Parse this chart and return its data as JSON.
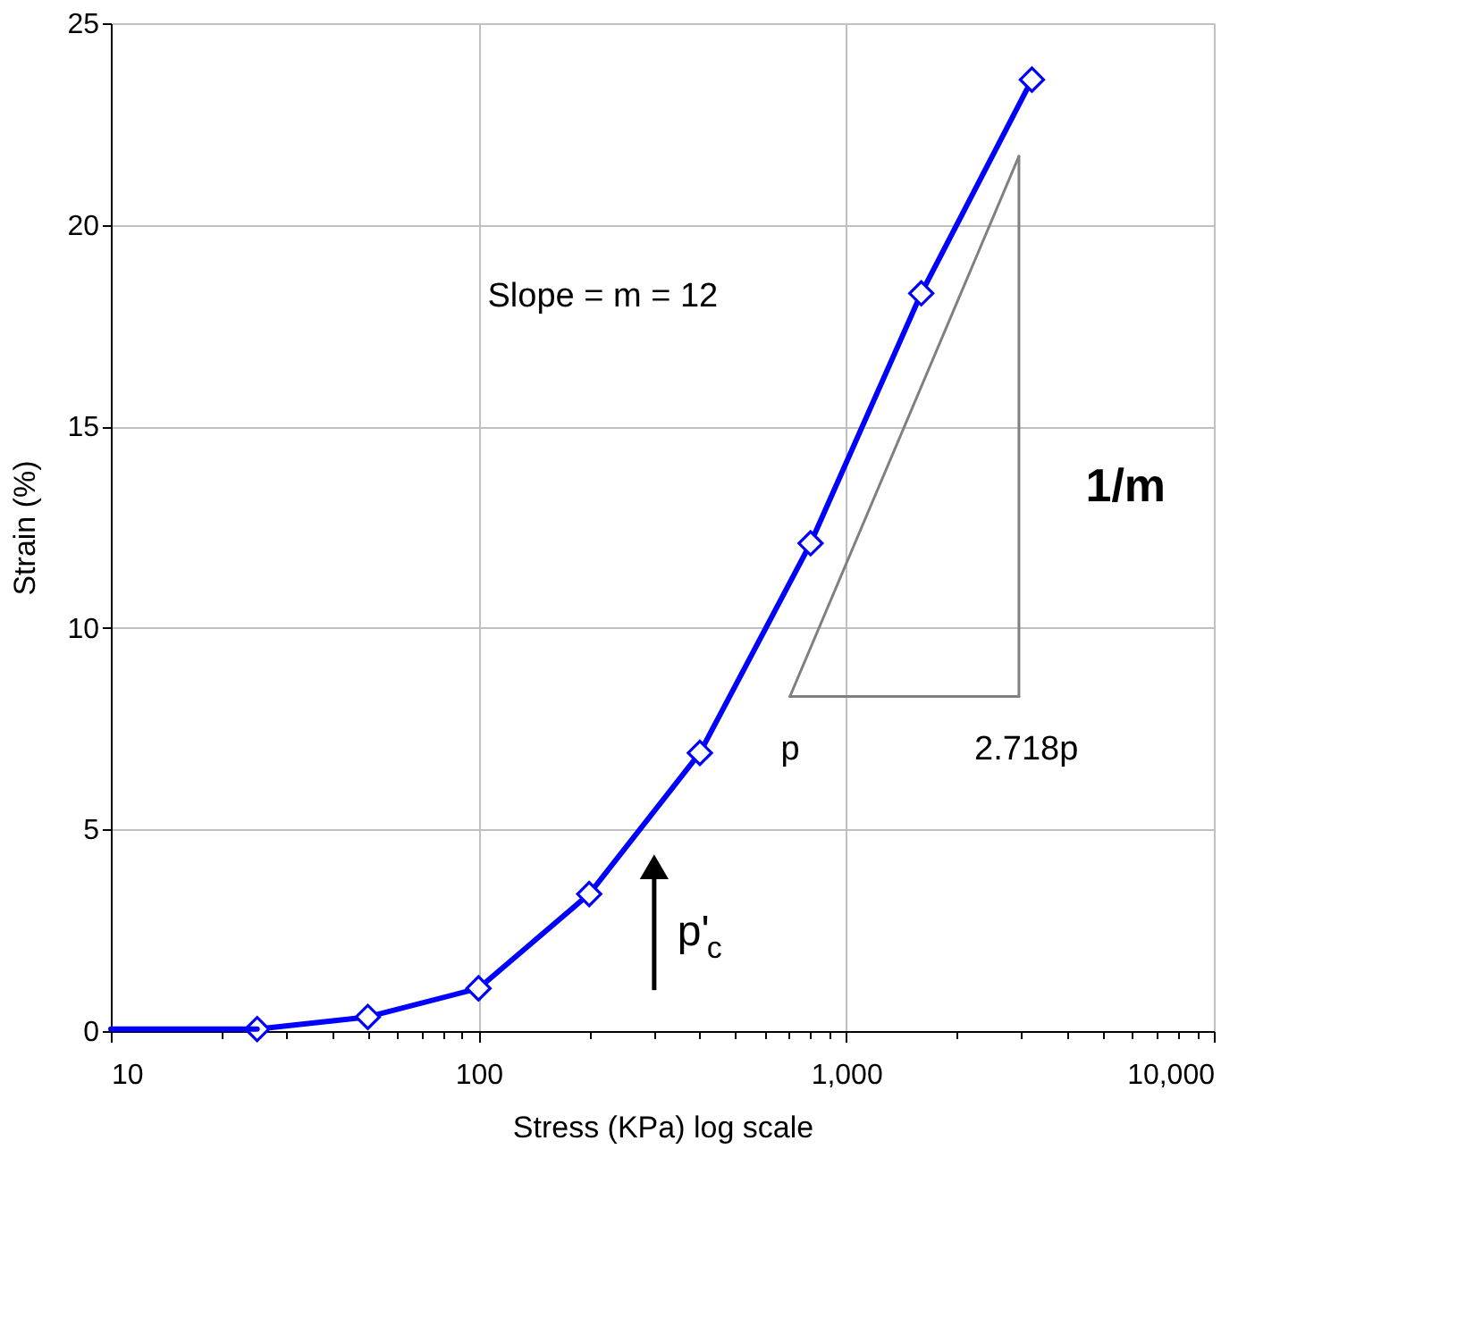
{
  "chart_data": {
    "type": "line",
    "xlabel": "Stress  (KPa)   log scale",
    "ylabel": "Strain  (%)",
    "log": "x",
    "xlim": [
      10,
      10000
    ],
    "ylim": [
      0,
      25
    ],
    "xticks": [
      10,
      100,
      {
        "value": 1000,
        "label": "1,000"
      },
      {
        "value": 10000,
        "label": "10,000"
      },
      {
        "value": 20,
        "label": null
      },
      {
        "value": 30,
        "label": null
      },
      {
        "value": 40,
        "label": null
      },
      {
        "value": 50,
        "label": null
      },
      {
        "value": 60,
        "label": null
      },
      {
        "value": 70,
        "label": null
      },
      {
        "value": 80,
        "label": null
      },
      {
        "value": 90,
        "label": null
      },
      {
        "value": 200,
        "label": null
      },
      {
        "value": 300,
        "label": null
      },
      {
        "value": 400,
        "label": null
      },
      {
        "value": 500,
        "label": null
      },
      {
        "value": 600,
        "label": null
      },
      {
        "value": 700,
        "label": null
      },
      {
        "value": 800,
        "label": null
      },
      {
        "value": 900,
        "label": null
      },
      {
        "value": 2000,
        "label": null
      },
      {
        "value": 3000,
        "label": null
      },
      {
        "value": 4000,
        "label": null
      },
      {
        "value": 5000,
        "label": null
      },
      {
        "value": 6000,
        "label": null
      },
      {
        "value": 7000,
        "label": null
      },
      {
        "value": 8000,
        "label": null
      },
      {
        "value": 9000,
        "label": null
      }
    ],
    "yticks": [
      0,
      5,
      10,
      15,
      20,
      25
    ],
    "grid": true,
    "series": [
      {
        "color": "#0000ff",
        "marker": "diamond",
        "x": [
          25,
          50,
          100,
          200,
          400,
          800,
          1600,
          3200
        ],
        "values": [
          0.05,
          0.35,
          1.06,
          3.4,
          6.9,
          12.1,
          18.3,
          23.6
        ]
      },
      {
        "color": "#0000ff",
        "marker": "none",
        "x": [
          10,
          25
        ],
        "values": [
          0.05,
          0.05
        ]
      },
      {
        "color": "#808080",
        "marker": "none",
        "x": [
          703,
          2950
        ],
        "values": [
          8.3,
          21.7
        ]
      },
      {
        "color": "#808080",
        "marker": "none",
        "x": [
          703,
          2950
        ],
        "values": [
          8.3,
          8.3
        ]
      },
      {
        "color": "#808080",
        "marker": "none",
        "x": [
          2950,
          2950
        ],
        "values": [
          8.3,
          21.7
        ]
      }
    ],
    "annotations": [
      "Slope =  m = 12",
      "1/m",
      "p",
      "2.718p",
      "p'$_{c}$"
    ]
  }
}
